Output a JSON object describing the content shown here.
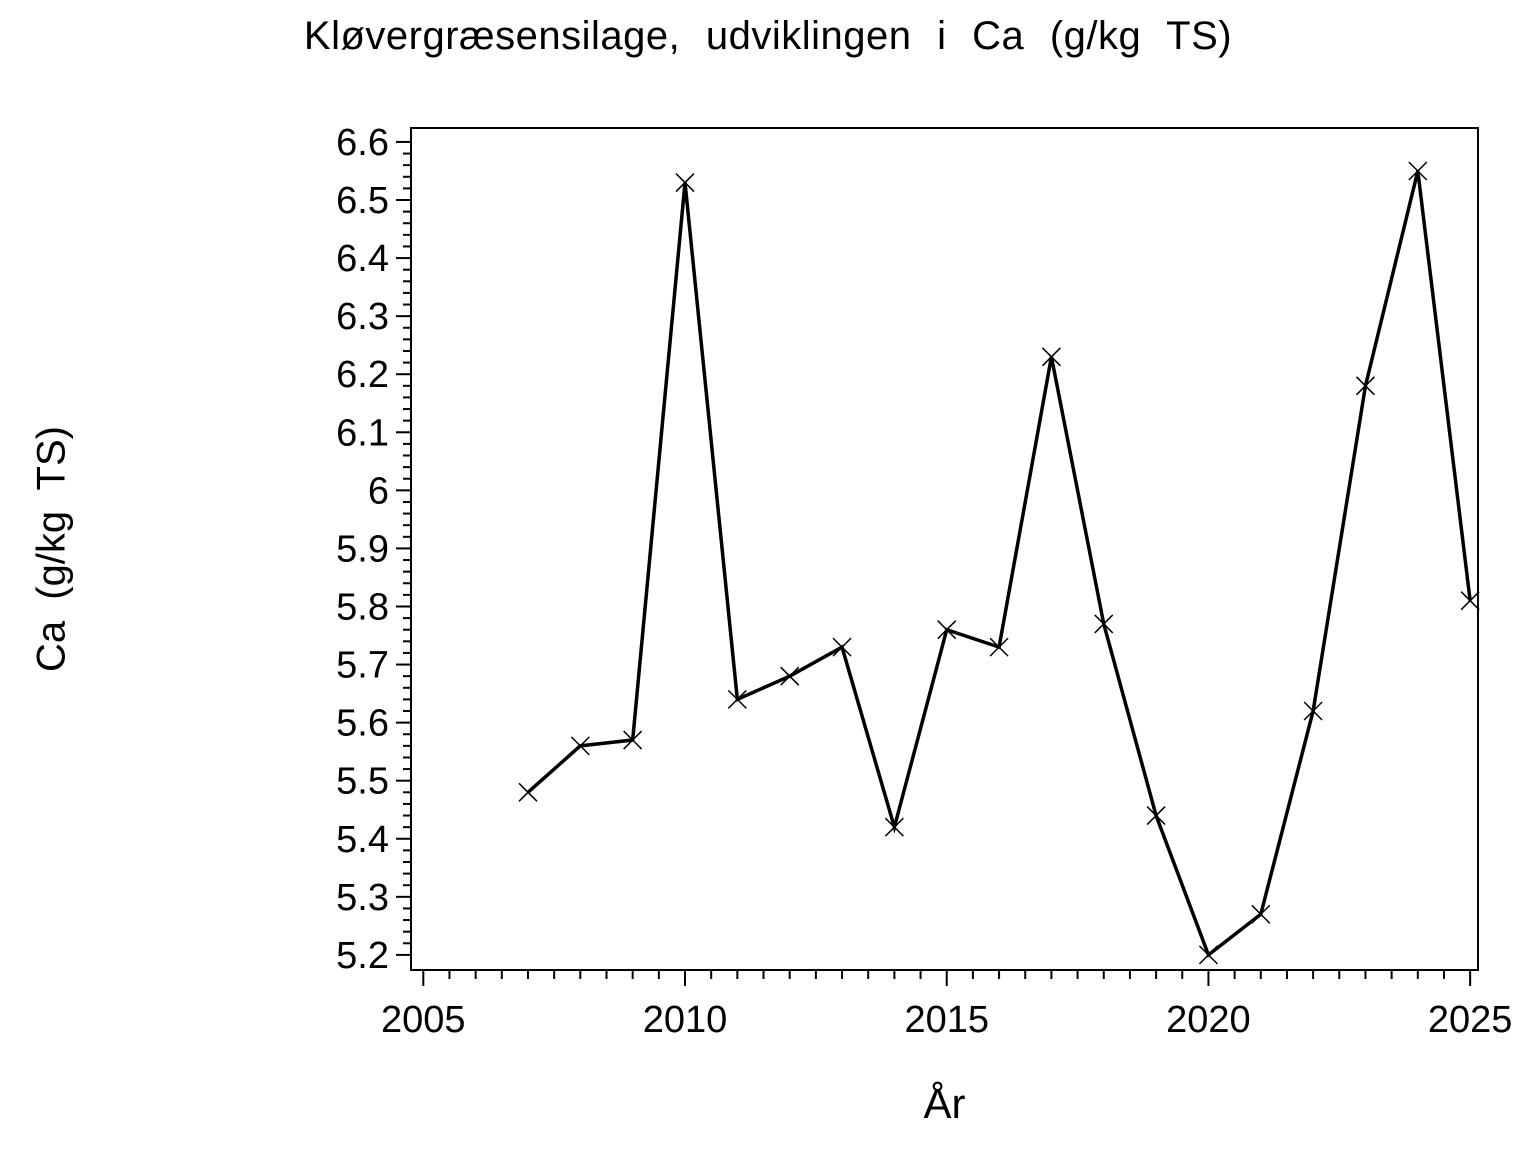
{
  "chart_data": {
    "type": "line",
    "title": "Kløvergræsensilage, udviklingen i Ca (g/kg TS)",
    "xlabel": "År",
    "ylabel": "Ca (g/kg TS)",
    "x": [
      2007,
      2008,
      2009,
      2010,
      2011,
      2012,
      2013,
      2014,
      2015,
      2016,
      2017,
      2018,
      2019,
      2020,
      2021,
      2022,
      2023,
      2024,
      2025
    ],
    "values": [
      5.48,
      5.56,
      5.57,
      6.53,
      5.64,
      5.68,
      5.73,
      5.42,
      5.76,
      5.73,
      6.23,
      5.77,
      5.44,
      5.2,
      5.27,
      5.62,
      6.18,
      6.55,
      5.81
    ],
    "series_name": "Ca (g/kg TS)",
    "marker": "x",
    "grid": false,
    "legend": "none",
    "line_color": "#000000",
    "background_color": "#ffffff",
    "x_axis": {
      "range": [
        2004.765,
        2025.15
      ],
      "ticks": [
        2005,
        2010,
        2015,
        2020,
        2025
      ],
      "tick_labels": [
        "2005",
        "2010",
        "2015",
        "2020",
        "2025"
      ],
      "minor_step": 0.5
    },
    "y_axis": {
      "range": [
        5.174,
        6.624
      ],
      "ticks": [
        5.2,
        5.3,
        5.4,
        5.5,
        5.6,
        5.7,
        5.8,
        5.9,
        6.0,
        6.1,
        6.2,
        6.3,
        6.4,
        6.5,
        6.6
      ],
      "tick_labels": [
        "5.2",
        "5.3",
        "5.4",
        "5.5",
        "5.6",
        "5.7",
        "5.8",
        "5.9",
        "6",
        "6.1",
        "6.2",
        "6.3",
        "6.4",
        "6.5",
        "6.6"
      ],
      "minor_step": 0.02
    }
  }
}
